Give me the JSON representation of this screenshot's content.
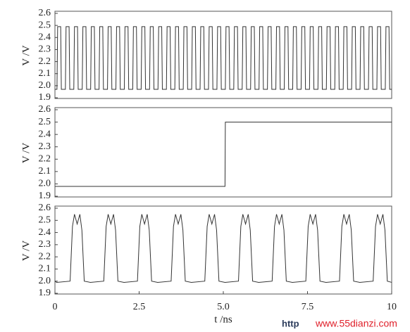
{
  "chart_data": [
    {
      "type": "line",
      "ylabel": "V /V",
      "color": "#333333",
      "xlim": [
        0,
        10
      ],
      "ylim": [
        1.9,
        2.6
      ],
      "yticks": [
        1.9,
        {
          "value": 2,
          "label": "2.0"
        },
        2.1,
        2.2,
        2.3,
        2.4,
        2.5,
        2.6
      ],
      "x": [
        0,
        0.06,
        0.08,
        0.17,
        0.19,
        0.31,
        0.33,
        0.42,
        0.44,
        0.56,
        0.58,
        0.67,
        0.69,
        0.81,
        0.83,
        0.92,
        0.94,
        1.06,
        1.08,
        1.17,
        1.19,
        1.31,
        1.33,
        1.42,
        1.44,
        1.56,
        1.58,
        1.67,
        1.69,
        1.81,
        1.83,
        1.92,
        1.94,
        2.06,
        2.08,
        2.17,
        2.19,
        2.31,
        2.33,
        2.42,
        2.44,
        2.56,
        2.58,
        2.67,
        2.69,
        2.81,
        2.83,
        2.92,
        2.94,
        3.06,
        3.08,
        3.17,
        3.19,
        3.31,
        3.33,
        3.42,
        3.44,
        3.56,
        3.58,
        3.67,
        3.69,
        3.81,
        3.83,
        3.92,
        3.94,
        4.06,
        4.08,
        4.17,
        4.19,
        4.31,
        4.33,
        4.42,
        4.44,
        4.56,
        4.58,
        4.67,
        4.69,
        4.81,
        4.83,
        4.92,
        4.94,
        5.06,
        5.08,
        5.17,
        5.19,
        5.31,
        5.33,
        5.42,
        5.44,
        5.56,
        5.58,
        5.67,
        5.69,
        5.81,
        5.83,
        5.92,
        5.94,
        6.06,
        6.08,
        6.17,
        6.19,
        6.31,
        6.33,
        6.42,
        6.44,
        6.56,
        6.58,
        6.67,
        6.69,
        6.81,
        6.83,
        6.92,
        6.94,
        7.06,
        7.08,
        7.17,
        7.19,
        7.31,
        7.33,
        7.42,
        7.44,
        7.56,
        7.58,
        7.67,
        7.69,
        7.81,
        7.83,
        7.92,
        7.94,
        8.06,
        8.08,
        8.17,
        8.19,
        8.31,
        8.33,
        8.42,
        8.44,
        8.56,
        8.58,
        8.67,
        8.69,
        8.81,
        8.83,
        8.92,
        8.94,
        9.06,
        9.08,
        9.17,
        9.19,
        9.31,
        9.33,
        9.42,
        9.44,
        9.56,
        9.58,
        9.67,
        9.69,
        9.81,
        9.83,
        9.92,
        9.94,
        10
      ],
      "values": [
        1.97,
        1.97,
        2.49,
        2.49,
        1.97,
        1.97,
        2.49,
        2.49,
        1.97,
        1.97,
        2.49,
        2.49,
        1.97,
        1.97,
        2.49,
        2.49,
        1.97,
        1.97,
        2.49,
        2.49,
        1.97,
        1.97,
        2.49,
        2.49,
        1.97,
        1.97,
        2.49,
        2.49,
        1.97,
        1.97,
        2.49,
        2.49,
        1.97,
        1.97,
        2.49,
        2.49,
        1.97,
        1.97,
        2.49,
        2.49,
        1.97,
        1.97,
        2.49,
        2.49,
        1.97,
        1.97,
        2.49,
        2.49,
        1.97,
        1.97,
        2.49,
        2.49,
        1.97,
        1.97,
        2.49,
        2.49,
        1.97,
        1.97,
        2.49,
        2.49,
        1.97,
        1.97,
        2.49,
        2.49,
        1.97,
        1.97,
        2.49,
        2.49,
        1.97,
        1.97,
        2.49,
        2.49,
        1.97,
        1.97,
        2.49,
        2.49,
        1.97,
        1.97,
        2.49,
        2.49,
        1.97,
        1.97,
        2.49,
        2.49,
        1.97,
        1.97,
        2.49,
        2.49,
        1.97,
        1.97,
        2.49,
        2.49,
        1.97,
        1.97,
        2.49,
        2.49,
        1.97,
        1.97,
        2.49,
        2.49,
        1.97,
        1.97,
        2.49,
        2.49,
        1.97,
        1.97,
        2.49,
        2.49,
        1.97,
        1.97,
        2.49,
        2.49,
        1.97,
        1.97,
        2.49,
        2.49,
        1.97,
        1.97,
        2.49,
        2.49,
        1.97,
        1.97,
        2.49,
        2.49,
        1.97,
        1.97,
        2.49,
        2.49,
        1.97,
        1.97,
        2.49,
        2.49,
        1.97,
        1.97,
        2.49,
        2.49,
        1.97,
        1.97,
        2.49,
        2.49,
        1.97,
        1.97,
        2.49,
        2.49,
        1.97,
        1.97,
        2.49,
        2.49,
        1.97,
        1.97,
        2.49,
        2.49,
        1.97,
        1.97,
        2.49,
        2.49,
        1.97,
        1.97,
        2.49,
        2.49,
        1.97,
        1.97
      ]
    },
    {
      "type": "line",
      "ylabel": "V /V",
      "color": "#333333",
      "xlim": [
        0,
        10
      ],
      "ylim": [
        1.9,
        2.6
      ],
      "yticks": [
        1.9,
        {
          "value": 2,
          "label": "2.0"
        },
        2.1,
        2.2,
        2.3,
        2.4,
        2.5,
        2.6
      ],
      "x": [
        0,
        5.05,
        5.06,
        10
      ],
      "values": [
        1.98,
        1.98,
        2.5,
        2.5
      ]
    },
    {
      "type": "line",
      "ylabel": "V /V",
      "xlabel": "t /ns",
      "color": "#333333",
      "xlim": [
        0,
        10
      ],
      "ylim": [
        1.9,
        2.6
      ],
      "yticks": [
        1.9,
        {
          "value": 2,
          "label": "2.0"
        },
        2.1,
        2.2,
        2.3,
        2.4,
        2.5,
        2.6
      ],
      "xticks": [
        0,
        2.5,
        {
          "value": 5,
          "label": "5.0"
        },
        7.5,
        10
      ],
      "x": [
        0,
        0.05,
        0.45,
        0.52,
        0.58,
        0.66,
        0.74,
        0.8,
        0.87,
        1.05,
        1.45,
        1.52,
        1.58,
        1.66,
        1.74,
        1.8,
        1.87,
        2.05,
        2.45,
        2.52,
        2.58,
        2.66,
        2.74,
        2.8,
        2.87,
        3.05,
        3.45,
        3.52,
        3.58,
        3.66,
        3.74,
        3.8,
        3.87,
        4.05,
        4.45,
        4.52,
        4.58,
        4.66,
        4.74,
        4.8,
        4.87,
        5.05,
        5.45,
        5.52,
        5.58,
        5.66,
        5.74,
        5.8,
        5.87,
        6.05,
        6.45,
        6.52,
        6.58,
        6.66,
        6.74,
        6.8,
        6.87,
        7.05,
        7.45,
        7.52,
        7.58,
        7.66,
        7.74,
        7.8,
        7.87,
        8.05,
        8.45,
        8.52,
        8.58,
        8.66,
        8.74,
        8.8,
        8.87,
        9.05,
        9.45,
        9.52,
        9.58,
        9.66,
        9.74,
        9.8,
        9.87,
        10
      ],
      "values": [
        2.0,
        1.99,
        2.0,
        2.45,
        2.55,
        2.47,
        2.55,
        2.42,
        2.0,
        1.99,
        2.0,
        2.45,
        2.55,
        2.47,
        2.55,
        2.42,
        2.0,
        1.99,
        2.0,
        2.45,
        2.55,
        2.47,
        2.55,
        2.42,
        2.0,
        1.99,
        2.0,
        2.45,
        2.55,
        2.47,
        2.55,
        2.42,
        2.0,
        1.99,
        2.0,
        2.45,
        2.55,
        2.47,
        2.55,
        2.42,
        2.0,
        1.99,
        2.0,
        2.45,
        2.55,
        2.47,
        2.55,
        2.42,
        2.0,
        1.99,
        2.0,
        2.45,
        2.55,
        2.47,
        2.55,
        2.42,
        2.0,
        1.99,
        2.0,
        2.45,
        2.55,
        2.47,
        2.55,
        2.42,
        2.0,
        1.99,
        2.0,
        2.45,
        2.55,
        2.47,
        2.55,
        2.42,
        2.0,
        1.99,
        2.0,
        2.45,
        2.55,
        2.47,
        2.55,
        2.42,
        2.0,
        1.99
      ]
    }
  ],
  "watermark": {
    "prefix": "http",
    "site": "www.55dianzi.com"
  }
}
